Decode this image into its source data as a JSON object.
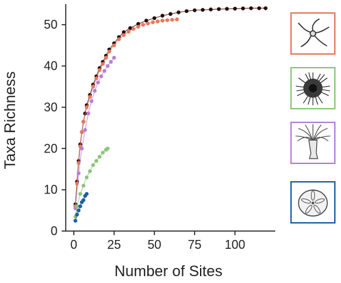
{
  "chart_data": {
    "type": "scatter",
    "xlabel": "Number of Sites",
    "ylabel": "Taxa Richness",
    "xlim": [
      -5,
      125
    ],
    "ylim": [
      0,
      55
    ],
    "xticks": [
      "0",
      "25",
      "50",
      "75",
      "100"
    ],
    "yticks": [
      "0",
      "10",
      "20",
      "30",
      "40",
      "50"
    ],
    "grid": false,
    "legend": "right, image panels",
    "series": [
      {
        "color": "#2a0a0a",
        "icon": "brittle-star-icon",
        "legend_color": "#e8785c",
        "x": [
          1,
          2,
          3,
          4,
          5,
          6,
          7,
          8,
          10,
          12,
          14,
          16,
          18,
          20,
          22,
          25,
          28,
          31,
          35,
          40,
          45,
          50,
          55,
          60,
          65,
          70,
          75,
          80,
          85,
          90,
          95,
          100,
          105,
          110,
          115,
          119
        ],
        "y": [
          6.5,
          12,
          17,
          21,
          24,
          26.5,
          28.5,
          30.5,
          33,
          35.5,
          37.5,
          39.5,
          41,
          42.5,
          44,
          45.5,
          47,
          48.2,
          49.2,
          50.2,
          51,
          51.6,
          52.2,
          52.6,
          53,
          53.3,
          53.5,
          53.6,
          53.7,
          53.8,
          53.85,
          53.9,
          53.95,
          54,
          54,
          54
        ]
      },
      {
        "color": "#e8785c",
        "icon": "brittle-star-icon",
        "x": [
          1,
          2,
          3,
          4,
          5,
          6,
          8,
          10,
          12,
          14,
          16,
          18,
          20,
          22,
          25,
          28,
          31,
          34,
          37,
          40,
          43,
          46,
          49,
          52,
          55,
          58,
          61,
          64
        ],
        "y": [
          6,
          11.5,
          16.5,
          20.5,
          24,
          26.5,
          30,
          32.5,
          35,
          37,
          39,
          40.5,
          42,
          43.5,
          45,
          46.5,
          47.5,
          48.3,
          49,
          49.5,
          50,
          50.3,
          50.6,
          50.8,
          51,
          51.1,
          51.2,
          51.3
        ]
      },
      {
        "color": "#b57fd9",
        "icon": "anemone-icon",
        "x": [
          1,
          3,
          5,
          7,
          9,
          11,
          13,
          15,
          17,
          19,
          21,
          23,
          25
        ],
        "y": [
          5.5,
          14,
          20,
          24.5,
          28.5,
          31.5,
          34,
          36,
          37.5,
          38.8,
          40,
          41,
          42
        ]
      },
      {
        "color": "#8cc47a",
        "icon": "sea-urchin-icon",
        "x": [
          1,
          2,
          4,
          6,
          8,
          10,
          12,
          14,
          16,
          18,
          20,
          21
        ],
        "y": [
          3.5,
          6,
          9,
          11,
          13,
          14.5,
          16,
          17,
          18,
          19,
          19.7,
          20
        ]
      },
      {
        "color": "#1f5fa0",
        "icon": "sand-dollar-icon",
        "x": [
          1,
          2,
          3,
          4,
          5,
          6,
          7,
          8
        ],
        "y": [
          2.5,
          4,
          5,
          6,
          7,
          7.5,
          8.5,
          9
        ]
      }
    ]
  },
  "legend_panels": [
    {
      "icon": "brittle-star-icon",
      "border": "#e8785c"
    },
    {
      "icon": "sea-urchin-icon",
      "border": "#8cc47a"
    },
    {
      "icon": "anemone-icon",
      "border": "#b57fd9"
    },
    {
      "icon": "sand-dollar-icon",
      "border": "#1f5fa0"
    }
  ]
}
